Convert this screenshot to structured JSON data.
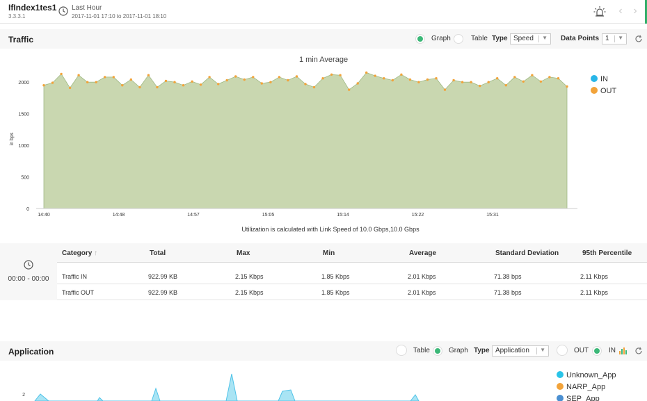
{
  "header": {
    "interface_name": "IfIndex1tes1",
    "interface_ip": "3.3.3.1",
    "range_label": "Last Hour",
    "range_value": "2017-11-01 17:10 to 2017-11-01 18:10"
  },
  "traffic": {
    "title": "Traffic",
    "view_graph_label": "Graph",
    "view_table_label": "Table",
    "view_selected": "Graph",
    "type_label": "Type",
    "type_value": "Speed",
    "points_label": "Data Points",
    "points_value": "1",
    "chart_title": "1 min Average",
    "utilization_note": "Utilization is calculated with Link Speed of 10.0 Gbps,10.0 Gbps",
    "legend": [
      {
        "name": "IN",
        "color": "#29b6e8"
      },
      {
        "name": "OUT",
        "color": "#f2a33a"
      }
    ]
  },
  "chart_data": [
    {
      "type": "area",
      "title": "1 min Average",
      "ylabel": "in bps",
      "xlabel": "",
      "ylim": [
        0,
        2200
      ],
      "y_ticks": [
        0,
        500,
        1000,
        1500,
        2000
      ],
      "x_tick_labels": [
        "14:40",
        "14:48",
        "14:57",
        "15:05",
        "15:14",
        "15:22",
        "15:31"
      ],
      "grid": false,
      "legend_position": "right",
      "series": [
        {
          "name": "IN",
          "color": "#29b6e8",
          "values": [
            1950,
            1990,
            2130,
            1910,
            2110,
            2000,
            2000,
            2080,
            2080,
            1950,
            2040,
            1920,
            2110,
            1920,
            2020,
            2000,
            1950,
            2010,
            1960,
            2080,
            1970,
            2030,
            2090,
            2040,
            2080,
            1980,
            2000,
            2080,
            2030,
            2090,
            1970,
            1920,
            2060,
            2120,
            2110,
            1880,
            1980,
            2150,
            2100,
            2060,
            2030,
            2120,
            2040,
            2000,
            2040,
            2060,
            1880,
            2030,
            2000,
            2000,
            1940,
            2000,
            2060,
            1950,
            2080,
            2010,
            2110,
            2010,
            2080,
            2060,
            1930
          ]
        },
        {
          "name": "OUT",
          "color": "#f2a33a",
          "values": [
            1950,
            1990,
            2130,
            1910,
            2110,
            2000,
            2000,
            2080,
            2080,
            1950,
            2040,
            1920,
            2110,
            1920,
            2020,
            2000,
            1950,
            2010,
            1960,
            2080,
            1970,
            2030,
            2090,
            2040,
            2080,
            1980,
            2000,
            2080,
            2030,
            2090,
            1970,
            1920,
            2060,
            2120,
            2110,
            1880,
            1980,
            2150,
            2100,
            2060,
            2030,
            2120,
            2040,
            2000,
            2040,
            2060,
            1880,
            2030,
            2000,
            2000,
            1940,
            2000,
            2060,
            1950,
            2080,
            2010,
            2110,
            2010,
            2080,
            2060,
            1930
          ]
        }
      ]
    }
  ],
  "stats_table": {
    "time_range": "00:00 - 00:00",
    "columns": [
      "Category",
      "Total",
      "Max",
      "Min",
      "Average",
      "Standard Deviation",
      "95th Percentile"
    ],
    "sort_indicator": "↑",
    "rows": [
      [
        "Traffic IN",
        "922.99 KB",
        "2.15 Kbps",
        "1.85 Kbps",
        "2.01 Kbps",
        "71.38 bps",
        "2.11 Kbps"
      ],
      [
        "Traffic OUT",
        "922.99 KB",
        "2.15 Kbps",
        "1.85 Kbps",
        "2.01 Kbps",
        "71.38 bps",
        "2.11 Kbps"
      ]
    ]
  },
  "application": {
    "title": "Application",
    "view_table_label": "Table",
    "view_graph_label": "Graph",
    "view_selected": "Graph",
    "type_label": "Type",
    "type_value": "Application",
    "out_label": "OUT",
    "in_label": "IN",
    "direction_selected": "IN",
    "y_tick_visible": "2",
    "legend": [
      {
        "name": "Unknown_App",
        "color": "#29c4e8"
      },
      {
        "name": "NARP_App",
        "color": "#f2a33a"
      },
      {
        "name": "SEP_App",
        "color": "#4a8fd1"
      }
    ]
  }
}
